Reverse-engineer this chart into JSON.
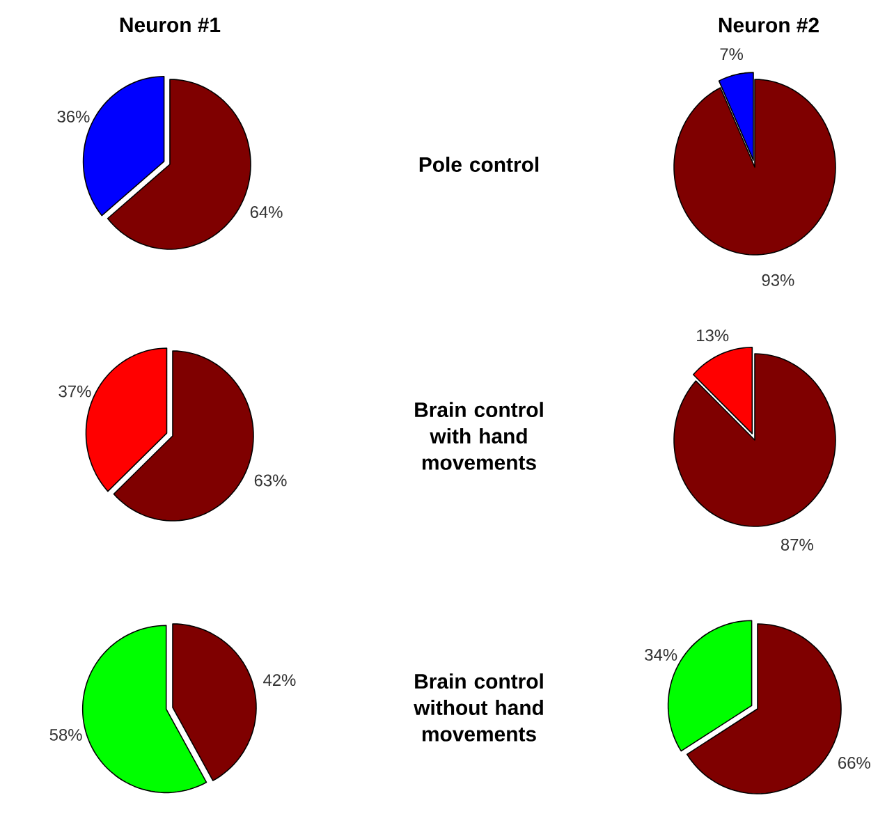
{
  "chart_data": [
    {
      "type": "pie",
      "title": "Neuron #1",
      "annotations": [
        "Pole control"
      ],
      "categories": [
        null,
        null
      ],
      "values": [
        64,
        36
      ],
      "colors": [
        "#7f0000",
        "#0000ff"
      ],
      "value_labels": [
        "64%",
        "36%"
      ]
    },
    {
      "type": "pie",
      "title": "Neuron #2",
      "categories": [
        null,
        null
      ],
      "values": [
        93,
        7
      ],
      "colors": [
        "#7f0000",
        "#0000ff"
      ],
      "value_labels": [
        "93%",
        "7%"
      ]
    },
    {
      "type": "pie",
      "annotations": [
        "Brain control with hand movements"
      ],
      "categories": [
        null,
        null
      ],
      "values": [
        63,
        37
      ],
      "colors": [
        "#7f0000",
        "#ff0000"
      ],
      "value_labels": [
        "63%",
        "37%"
      ]
    },
    {
      "type": "pie",
      "categories": [
        null,
        null
      ],
      "values": [
        87,
        13
      ],
      "colors": [
        "#7f0000",
        "#ff0000"
      ],
      "value_labels": [
        "87%",
        "13%"
      ]
    },
    {
      "type": "pie",
      "annotations": [
        "Brain control without hand movements"
      ],
      "categories": [
        null,
        null
      ],
      "values": [
        42,
        58
      ],
      "colors": [
        "#7f0000",
        "#00ff00"
      ],
      "value_labels": [
        "42%",
        "58%"
      ]
    },
    {
      "type": "pie",
      "categories": [
        null,
        null
      ],
      "values": [
        66,
        34
      ],
      "colors": [
        "#7f0000",
        "#00ff00"
      ],
      "value_labels": [
        "66%",
        "34%"
      ]
    }
  ]
}
